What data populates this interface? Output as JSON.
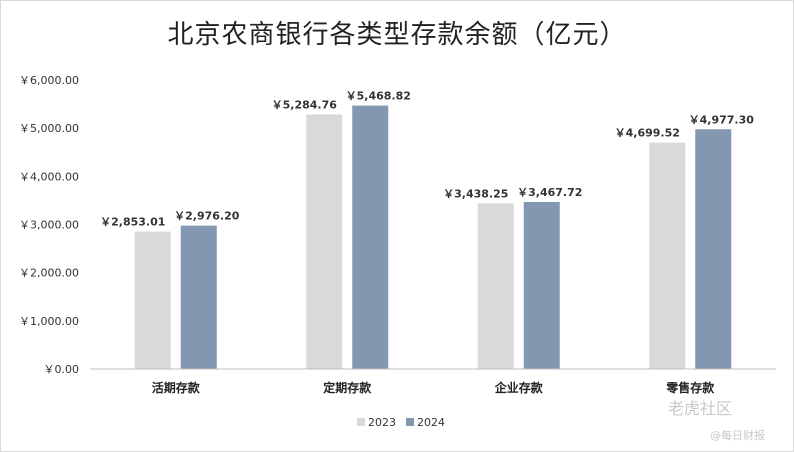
{
  "chart_data": {
    "type": "bar",
    "title": "北京农商银行各类型存款余额（亿元）",
    "categories": [
      "活期存款",
      "定期存款",
      "企业存款",
      "零售存款"
    ],
    "series": [
      {
        "name": "2023",
        "values": [
          2853.01,
          5284.76,
          3438.25,
          4699.52
        ],
        "labels": [
          "￥2,853.01",
          "￥5,284.76",
          "￥3,438.25",
          "￥4,699.52"
        ],
        "color": "#d9d9d9"
      },
      {
        "name": "2024",
        "values": [
          2976.2,
          5468.82,
          3467.72,
          4977.3
        ],
        "labels": [
          "￥2,976.20",
          "￥5,468.82",
          "￥3,467.72",
          "￥4,977.30"
        ],
        "color": "#8497b0"
      }
    ],
    "ylim": [
      0,
      6000
    ],
    "yticks": [
      0,
      1000,
      2000,
      3000,
      4000,
      5000,
      6000
    ],
    "ytick_labels": [
      "￥0.00",
      "￥1,000.00",
      "￥2,000.00",
      "￥3,000.00",
      "￥4,000.00",
      "￥5,000.00",
      "￥6,000.00"
    ],
    "grid": false,
    "legend_position": "bottom"
  },
  "watermark": {
    "main": "老虎社区",
    "sub": "@每日财报"
  }
}
